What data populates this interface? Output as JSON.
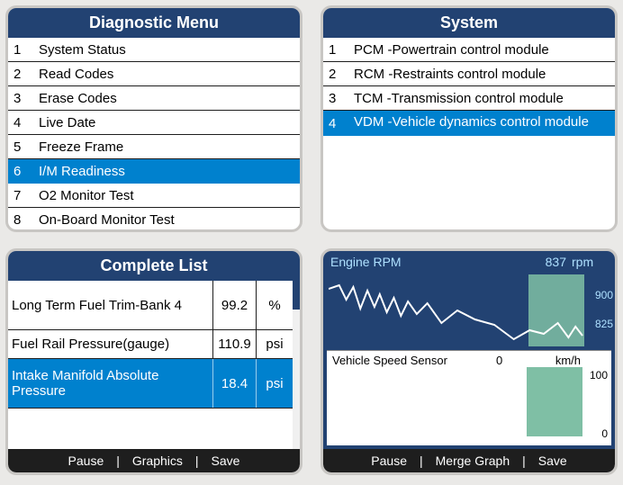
{
  "colors": {
    "page_bg": "#eae9e7",
    "card_border": "#c8c6c3",
    "header_bg": "#224272",
    "header_text": "#ffffff",
    "selected_bg": "#0081ce",
    "selected_text": "#ffffff",
    "row_text": "#000000",
    "row_divider": "#1e1e1e",
    "bottom_bar_bg": "#1e1e1e",
    "graph_bg": "#224272",
    "graph_text": "#aee0ff",
    "graph_line": "#ffffff",
    "graph_block": "#7fbfa5"
  },
  "diagnostic_menu": {
    "title": "Diagnostic Menu",
    "items": [
      {
        "n": "1",
        "label": "System Status",
        "selected": false
      },
      {
        "n": "2",
        "label": "Read Codes",
        "selected": false
      },
      {
        "n": "3",
        "label": "Erase Codes",
        "selected": false
      },
      {
        "n": "4",
        "label": "Live Date",
        "selected": false
      },
      {
        "n": "5",
        "label": "Freeze Frame",
        "selected": false
      },
      {
        "n": "6",
        "label": "I/M Readiness",
        "selected": true
      },
      {
        "n": "7",
        "label": "O2 Monitor Test",
        "selected": false
      },
      {
        "n": "8",
        "label": "On-Board Monitor Test",
        "selected": false
      }
    ]
  },
  "system_menu": {
    "title": "System",
    "items": [
      {
        "n": "1",
        "label": "PCM -Powertrain control module",
        "selected": false
      },
      {
        "n": "2",
        "label": "RCM -Restraints control module",
        "selected": false
      },
      {
        "n": "3",
        "label": "TCM -Transmission control module",
        "selected": false
      },
      {
        "n": "4",
        "label": "VDM -Vehicle dynamics  control module",
        "selected": true
      }
    ]
  },
  "complete_list": {
    "title": "Complete List",
    "rows": [
      {
        "name": "Long Term Fuel Trim-Bank 4",
        "value": "99.2",
        "unit": "%",
        "selected": false,
        "tall": true
      },
      {
        "name": "Fuel Rail Pressure(gauge)",
        "value": "110.9",
        "unit": "psi",
        "selected": false,
        "tall": false
      },
      {
        "name": "Intake Manifold Absolute Pressure",
        "value": "18.4",
        "unit": "psi",
        "selected": true,
        "tall": true
      }
    ],
    "buttons": {
      "pause": "Pause",
      "graphics": "Graphics",
      "save": "Save"
    }
  },
  "graph_panel": {
    "rpm": {
      "name": "Engine RPM",
      "value": "837",
      "unit": "rpm",
      "scale_max": "900",
      "scale_min": "825",
      "line_points": "0,22 12,18 20,34 28,20 36,44 44,24 52,42 58,28 66,48 74,32 82,52 90,36 100,50 112,38 128,60 146,46 166,56 188,62 210,78 228,68 244,72 260,60 272,76 280,64 288,74"
    },
    "speed": {
      "name": "Vehicle Speed Sensor",
      "value": "0",
      "unit": "km/h",
      "scale_max": "100",
      "scale_min": "0"
    },
    "buttons": {
      "pause": "Pause",
      "merge": "Merge Graph",
      "save": "Save"
    }
  }
}
